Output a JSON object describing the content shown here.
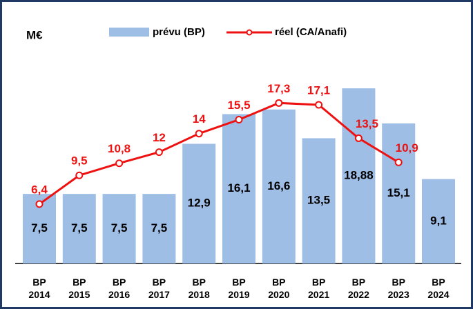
{
  "chart_data": {
    "type": "bar_line",
    "ylabel": "M€",
    "categories": [
      "BP 2014",
      "BP 2015",
      "BP 2016",
      "BP 2017",
      "BP 2018",
      "BP 2019",
      "BP 2020",
      "BP 2021",
      "BP 2022",
      "BP 2023",
      "BP 2024"
    ],
    "series": [
      {
        "name": "prévu (BP)",
        "type": "bar",
        "color": "#9fbee6",
        "values": [
          7.5,
          7.5,
          7.5,
          7.5,
          12.9,
          16.1,
          16.6,
          13.5,
          18.88,
          15.1,
          9.1
        ],
        "value_labels": [
          "7,5",
          "7,5",
          "7,5",
          "7,5",
          "12,9",
          "16,1",
          "16,6",
          "13,5",
          "18,88",
          "15,1",
          "9,1"
        ]
      },
      {
        "name": "réel (CA/Anafi)",
        "type": "line",
        "color": "#ee1111",
        "values": [
          6.4,
          9.5,
          10.8,
          12,
          14,
          15.5,
          17.3,
          17.1,
          13.5,
          10.9,
          null
        ],
        "value_labels": [
          "6,4",
          "9,5",
          "10,8",
          "12",
          "14",
          "15,5",
          "17,3",
          "17,1",
          "13,5",
          "10,9",
          null
        ]
      }
    ]
  }
}
